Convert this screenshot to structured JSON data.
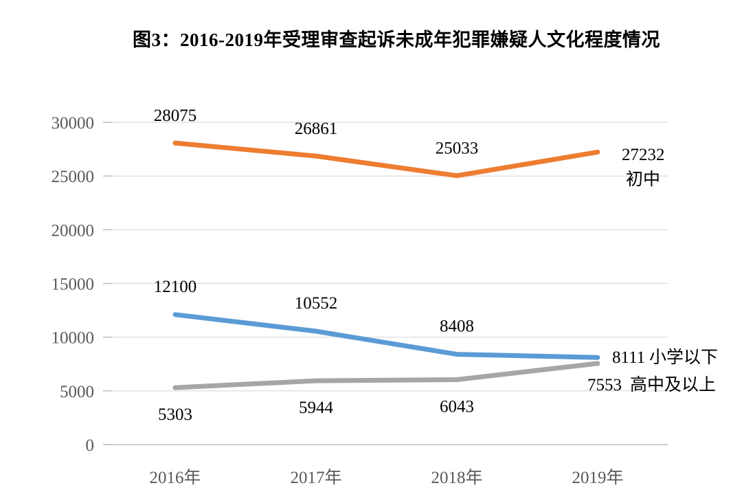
{
  "page": {
    "background": "#ffffff"
  },
  "chart_data": {
    "type": "line",
    "title": "图3：2016-2019年受理审查起诉未成年犯罪嫌疑人文化程度情况",
    "categories": [
      "2016年",
      "2017年",
      "2018年",
      "2019年"
    ],
    "series": [
      {
        "name": "初中",
        "color": "#ED7D31",
        "values": [
          28075,
          26861,
          25033,
          27232
        ]
      },
      {
        "name": "小学以下",
        "color": "#5B9BD5",
        "values": [
          12100,
          10552,
          8408,
          8111
        ]
      },
      {
        "name": "高中及以上",
        "color": "#A6A6A6",
        "values": [
          5303,
          5944,
          6043,
          7553
        ]
      }
    ],
    "xlabel": "",
    "ylabel": "",
    "ylim": [
      0,
      30000
    ],
    "ytick_step": 5000,
    "ytick_labels": [
      "0",
      "5000",
      "10000",
      "15000",
      "20000",
      "25000",
      "30000"
    ],
    "grid": true,
    "gridline_color": "#D9D9D9",
    "axis_color": "#BFBFBF",
    "tick_label_color": "#595959",
    "data_label_color": "#000000",
    "legend_position": "end-of-line"
  }
}
